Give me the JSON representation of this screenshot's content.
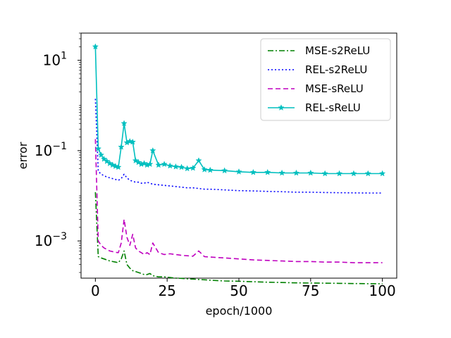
{
  "chart_data": {
    "type": "line",
    "title": "",
    "xlabel": "epoch/1000",
    "ylabel": "error",
    "yscale": "log",
    "xlim": [
      -5,
      105
    ],
    "ylim": [
      0.00015,
      40
    ],
    "xticks": [
      0,
      25,
      50,
      75,
      100
    ],
    "xtick_labels": [
      "0",
      "25",
      "50",
      "75",
      "100"
    ],
    "yticks": [
      0.001,
      0.1,
      10
    ],
    "ytick_labels": [
      {
        "base": "10",
        "exp": "−3"
      },
      {
        "base": "10",
        "exp": "−1"
      },
      {
        "base": "10",
        "exp": "1"
      }
    ],
    "grid": false,
    "legend_position": "top-right",
    "series": [
      {
        "name": "MSE-s2ReLU",
        "color": "#008000",
        "style": "dashdot",
        "marker": "none",
        "x": [
          0,
          1,
          2,
          3,
          4,
          5,
          6,
          7,
          8,
          9,
          10,
          11,
          12,
          13,
          14,
          15,
          16,
          17,
          18,
          19,
          20,
          22,
          24,
          26,
          28,
          30,
          32,
          34,
          36,
          38,
          40,
          45,
          50,
          55,
          60,
          65,
          70,
          75,
          80,
          85,
          90,
          95,
          100
        ],
        "y": [
          0.012,
          0.00045,
          0.00042,
          0.0004,
          0.00038,
          0.00036,
          0.00035,
          0.00034,
          0.00033,
          0.0004,
          0.0006,
          0.0003,
          0.00025,
          0.00022,
          0.00021,
          0.0002,
          0.00019,
          0.00018,
          0.00018,
          0.00019,
          0.00017,
          0.00016,
          0.00016,
          0.000155,
          0.00015,
          0.000148,
          0.000145,
          0.000143,
          0.00014,
          0.000138,
          0.000135,
          0.00013,
          0.000128,
          0.000125,
          0.000122,
          0.00012,
          0.000118,
          0.000117,
          0.000116,
          0.000115,
          0.000114,
          0.000113,
          0.000113
        ]
      },
      {
        "name": "REL-s2ReLU",
        "color": "#0000ff",
        "style": "dotted",
        "marker": "none",
        "x": [
          0,
          1,
          2,
          3,
          4,
          5,
          6,
          7,
          8,
          9,
          10,
          11,
          12,
          13,
          14,
          15,
          16,
          17,
          18,
          19,
          20,
          22,
          24,
          26,
          28,
          30,
          32,
          34,
          36,
          38,
          40,
          45,
          50,
          55,
          60,
          65,
          70,
          75,
          80,
          85,
          90,
          95,
          100
        ],
        "y": [
          1.4,
          0.035,
          0.03,
          0.028,
          0.026,
          0.025,
          0.024,
          0.023,
          0.022,
          0.024,
          0.03,
          0.025,
          0.022,
          0.021,
          0.02,
          0.02,
          0.019,
          0.019,
          0.02,
          0.019,
          0.018,
          0.0175,
          0.017,
          0.0165,
          0.016,
          0.0155,
          0.015,
          0.015,
          0.0145,
          0.014,
          0.014,
          0.0135,
          0.013,
          0.0128,
          0.0125,
          0.0123,
          0.012,
          0.012,
          0.0118,
          0.0117,
          0.0116,
          0.0115,
          0.0115
        ]
      },
      {
        "name": "MSE-sReLU",
        "color": "#bf00bf",
        "style": "dashed",
        "marker": "none",
        "x": [
          0,
          1,
          2,
          3,
          4,
          5,
          6,
          7,
          8,
          9,
          10,
          11,
          12,
          13,
          14,
          15,
          16,
          17,
          18,
          19,
          20,
          22,
          24,
          26,
          28,
          30,
          32,
          34,
          36,
          38,
          40,
          45,
          50,
          55,
          60,
          65,
          70,
          75,
          80,
          85,
          90,
          95,
          100
        ],
        "y": [
          0.18,
          0.001,
          0.0008,
          0.0007,
          0.00065,
          0.0006,
          0.00058,
          0.00056,
          0.00055,
          0.0009,
          0.003,
          0.0012,
          0.0008,
          0.0014,
          0.0007,
          0.0006,
          0.00055,
          0.0005,
          0.00055,
          0.0005,
          0.0009,
          0.00055,
          0.0005,
          0.00052,
          0.0005,
          0.00048,
          0.00047,
          0.00046,
          0.0006,
          0.00045,
          0.00044,
          0.00042,
          0.0004,
          0.00038,
          0.00037,
          0.00036,
          0.00035,
          0.00035,
          0.00034,
          0.00034,
          0.00033,
          0.00033,
          0.00033
        ]
      },
      {
        "name": "REL-sReLU",
        "color": "#00bfbf",
        "style": "solid",
        "marker": "star",
        "x": [
          0,
          1,
          2,
          3,
          4,
          5,
          6,
          7,
          8,
          9,
          10,
          11,
          12,
          13,
          14,
          15,
          16,
          17,
          18,
          19,
          20,
          22,
          24,
          26,
          28,
          30,
          32,
          34,
          36,
          38,
          40,
          45,
          50,
          55,
          60,
          65,
          70,
          75,
          80,
          85,
          90,
          95,
          100
        ],
        "y": [
          20,
          0.11,
          0.08,
          0.065,
          0.058,
          0.052,
          0.048,
          0.045,
          0.043,
          0.12,
          0.4,
          0.15,
          0.16,
          0.155,
          0.06,
          0.055,
          0.05,
          0.052,
          0.048,
          0.05,
          0.1,
          0.048,
          0.05,
          0.046,
          0.044,
          0.043,
          0.04,
          0.041,
          0.06,
          0.038,
          0.037,
          0.036,
          0.034,
          0.033,
          0.033,
          0.032,
          0.032,
          0.032,
          0.031,
          0.031,
          0.031,
          0.031,
          0.031
        ]
      }
    ]
  }
}
